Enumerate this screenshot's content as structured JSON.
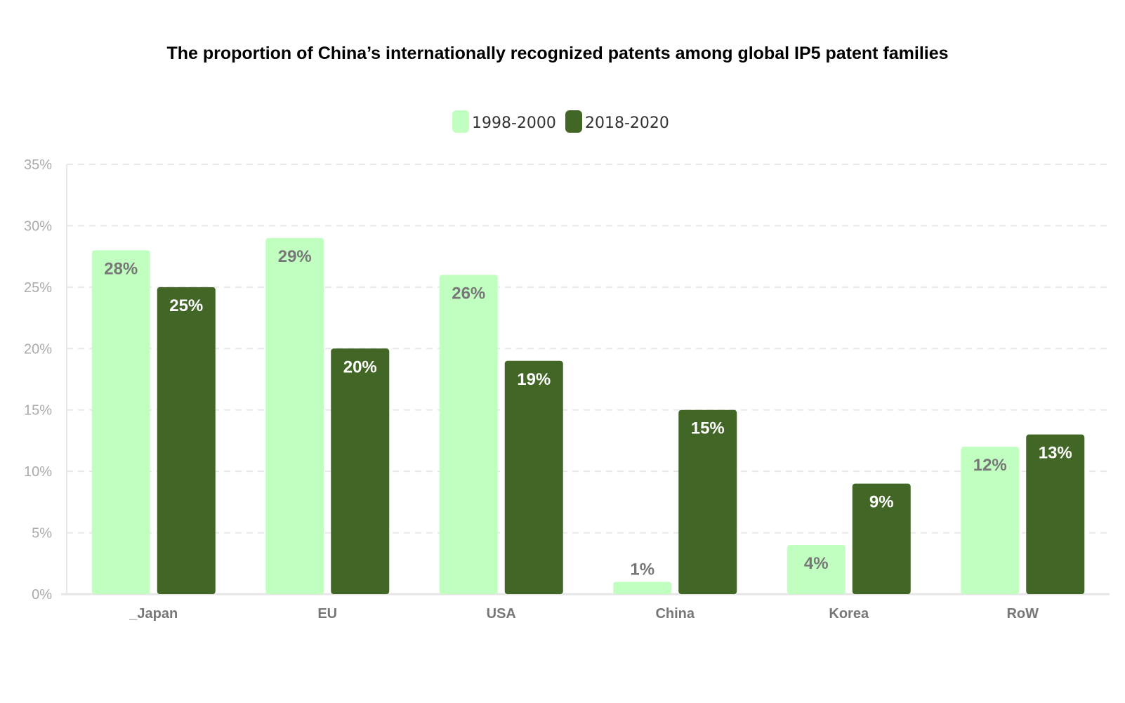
{
  "chart_data": {
    "type": "bar",
    "title": "The proportion of China’s internationally recognized patents among global IP5 patent families",
    "categories": [
      "_Japan",
      "EU",
      "USA",
      "China",
      "Korea",
      "RoW"
    ],
    "series": [
      {
        "name": "1998-2000",
        "color": "#c0ffc0",
        "values": [
          28,
          29,
          26,
          1,
          4,
          12
        ],
        "labels": [
          "28%",
          "29%",
          "26%",
          "1%",
          "4%",
          "12%"
        ]
      },
      {
        "name": "2018-2020",
        "color": "#426626",
        "values": [
          25,
          20,
          19,
          15,
          9,
          13
        ],
        "labels": [
          "25%",
          "20%",
          "19%",
          "15%",
          "9%",
          "13%"
        ]
      }
    ],
    "yticks": [
      "0%",
      "5%",
      "10%",
      "15%",
      "20%",
      "25%",
      "30%",
      "35%"
    ],
    "ylim": [
      0,
      35
    ],
    "grid": true,
    "legend": "top-center",
    "xlabel": "",
    "ylabel": ""
  }
}
